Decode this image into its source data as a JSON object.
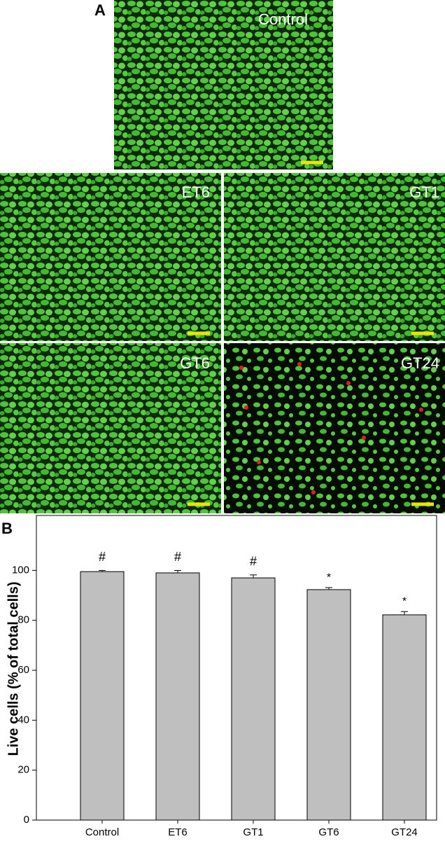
{
  "panel_a": {
    "label": "A",
    "images": [
      "Control",
      "ET6",
      "GT1",
      "GT6",
      "GT24"
    ]
  },
  "chart_data": {
    "type": "bar",
    "panel_label": "B",
    "y_label": "Live cells (% of total cells)",
    "categories": [
      "Control",
      "ET6",
      "GT1",
      "GT6",
      "GT24"
    ],
    "values": [
      99.5,
      99,
      97,
      92.3,
      82.2
    ],
    "errors": [
      0.5,
      1,
      1.2,
      0.8,
      1.3
    ],
    "annotations": [
      "#",
      "#",
      "#",
      "*",
      "*"
    ],
    "color": "#bfbfbf",
    "ylim": [
      0,
      122
    ],
    "yticks": [
      0,
      20,
      40,
      60,
      80,
      100
    ]
  }
}
